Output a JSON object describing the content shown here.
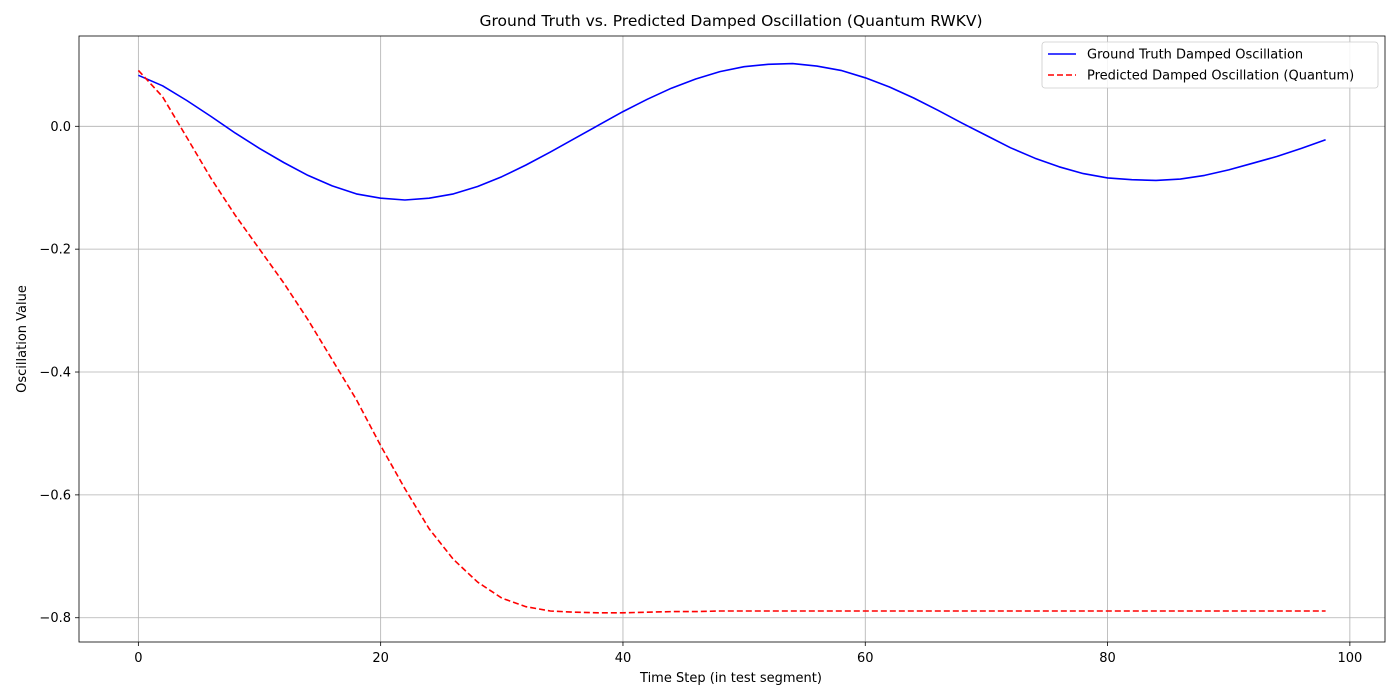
{
  "chart_data": {
    "type": "line",
    "title": "Ground Truth vs. Predicted Damped Oscillation (Quantum RWKV)",
    "xlabel": "Time Step (in test segment)",
    "ylabel": "Oscillation Value",
    "xlim": [
      -4.9,
      102.9
    ],
    "ylim": [
      -0.8395,
      0.147
    ],
    "xticks": [
      0,
      20,
      40,
      60,
      80,
      100
    ],
    "xtick_labels": [
      "0",
      "20",
      "40",
      "60",
      "80",
      "100"
    ],
    "yticks": [
      0.0,
      -0.2,
      -0.4,
      -0.6,
      -0.8
    ],
    "ytick_labels": [
      "0.0",
      "−0.2",
      "−0.4",
      "−0.6",
      "−0.8"
    ],
    "grid": true,
    "legend_position": "top-right",
    "series": [
      {
        "name": "Ground Truth Damped Oscillation",
        "color": "#0000ff",
        "style": "solid",
        "x": [
          0,
          2,
          4,
          6,
          8,
          10,
          12,
          14,
          16,
          18,
          20,
          22,
          24,
          26,
          28,
          30,
          32,
          34,
          36,
          38,
          40,
          42,
          44,
          46,
          48,
          50,
          52,
          54,
          56,
          58,
          60,
          62,
          64,
          66,
          68,
          70,
          72,
          74,
          76,
          78,
          80,
          82,
          84,
          86,
          88,
          90,
          92,
          94,
          96,
          98
        ],
        "y": [
          0.083,
          0.066,
          0.042,
          0.016,
          -0.011,
          -0.036,
          -0.059,
          -0.08,
          -0.097,
          -0.11,
          -0.117,
          -0.12,
          -0.117,
          -0.11,
          -0.098,
          -0.082,
          -0.063,
          -0.042,
          -0.02,
          0.002,
          0.024,
          0.044,
          0.062,
          0.077,
          0.089,
          0.097,
          0.101,
          0.102,
          0.098,
          0.091,
          0.079,
          0.064,
          0.046,
          0.026,
          0.005,
          -0.015,
          -0.035,
          -0.052,
          -0.066,
          -0.077,
          -0.084,
          -0.087,
          -0.088,
          -0.086,
          -0.08,
          -0.071,
          -0.06,
          -0.049,
          -0.036,
          -0.022
        ]
      },
      {
        "name": "Predicted Damped Oscillation (Quantum)",
        "color": "#ff0000",
        "style": "dashed",
        "x": [
          0,
          2,
          4,
          6,
          8,
          10,
          12,
          14,
          16,
          18,
          20,
          22,
          24,
          26,
          28,
          30,
          32,
          34,
          36,
          38,
          40,
          42,
          44,
          46,
          48,
          50,
          52,
          54,
          56,
          58,
          60,
          62,
          64,
          66,
          68,
          70,
          72,
          74,
          76,
          78,
          80,
          82,
          84,
          86,
          88,
          90,
          92,
          94,
          96,
          98
        ],
        "y": [
          0.091,
          0.048,
          -0.018,
          -0.085,
          -0.145,
          -0.2,
          -0.255,
          -0.315,
          -0.38,
          -0.445,
          -0.52,
          -0.59,
          -0.655,
          -0.705,
          -0.742,
          -0.768,
          -0.782,
          -0.789,
          -0.791,
          -0.792,
          -0.792,
          -0.791,
          -0.79,
          -0.79,
          -0.789,
          -0.789,
          -0.789,
          -0.789,
          -0.789,
          -0.789,
          -0.789,
          -0.789,
          -0.789,
          -0.789,
          -0.789,
          -0.789,
          -0.789,
          -0.789,
          -0.789,
          -0.789,
          -0.789,
          -0.789,
          -0.789,
          -0.789,
          -0.789,
          -0.789,
          -0.789,
          -0.789,
          -0.789,
          -0.789
        ]
      }
    ]
  }
}
